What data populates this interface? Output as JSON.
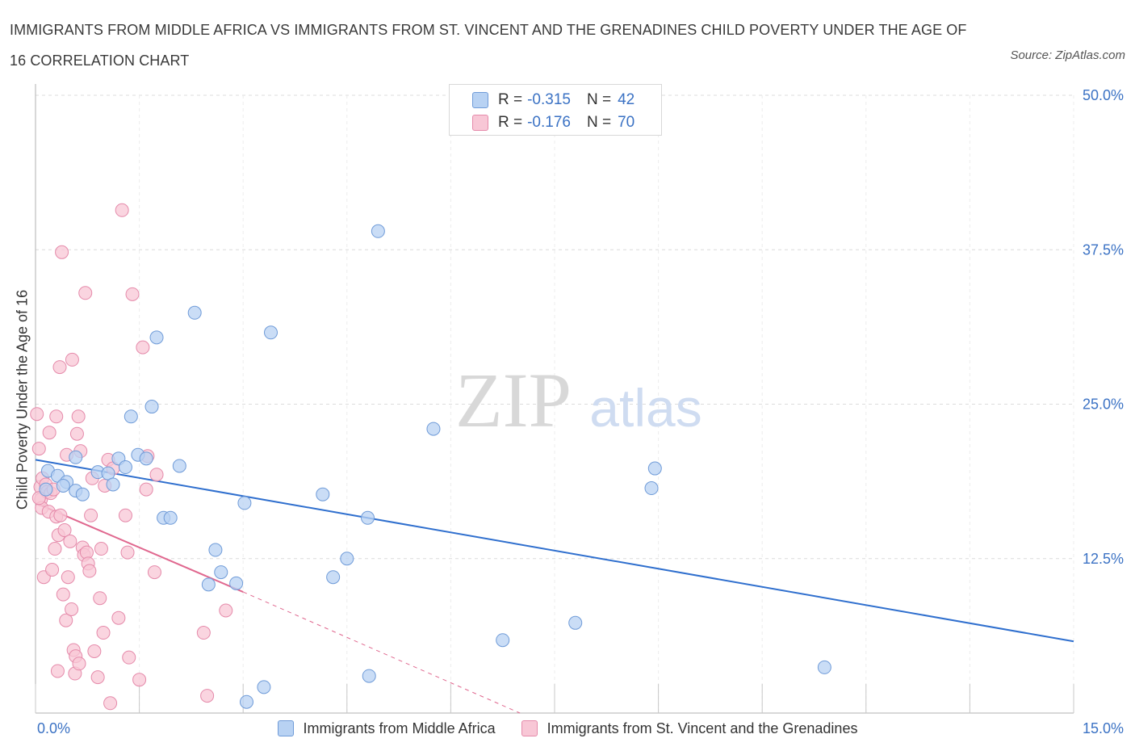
{
  "header": {
    "title": "IMMIGRANTS FROM MIDDLE AFRICA VS IMMIGRANTS FROM ST. VINCENT AND THE GRENADINES CHILD POVERTY UNDER THE AGE OF 16 CORRELATION CHART",
    "source": "Source: ZipAtlas.com"
  },
  "legend": {
    "r_label": "R =",
    "n_label": "N =",
    "series": [
      {
        "r": "-0.315",
        "n": "42"
      },
      {
        "r": "-0.176",
        "n": "70"
      }
    ]
  },
  "watermark": {
    "zip": "ZIP",
    "atlas": "atlas"
  },
  "colors": {
    "blue_fill": "#b8d2f3",
    "blue_stroke": "#6f9bd8",
    "blue_line": "#2f6fce",
    "pink_fill": "#f8c7d6",
    "pink_stroke": "#e58aaa",
    "pink_line": "#e0688f",
    "tick_label": "#3b72c4",
    "grid": "#dcdcdc"
  },
  "chart_data": {
    "type": "scatter",
    "title": "IMMIGRANTS FROM MIDDLE AFRICA VS IMMIGRANTS FROM ST. VINCENT AND THE GRENADINES CHILD POVERTY UNDER THE AGE OF 16 CORRELATION CHART",
    "xlabel": "",
    "ylabel": "Child Poverty Under the Age of 16",
    "xlim": [
      0,
      15
    ],
    "ylim": [
      0,
      50
    ],
    "x_tick_labels": [
      "0.0%",
      "15.0%"
    ],
    "y_ticks": [
      12.5,
      25,
      37.5,
      50
    ],
    "y_tick_labels": [
      "12.5%",
      "25.0%",
      "37.5%",
      "50.0%"
    ],
    "grid": true,
    "legend_position": "top-center",
    "series": [
      {
        "name": "Immigrants from Middle Africa",
        "points": [
          [
            0.18,
            19.6
          ],
          [
            0.32,
            19.2
          ],
          [
            0.45,
            18.7
          ],
          [
            0.58,
            18.0
          ],
          [
            0.68,
            17.7
          ],
          [
            0.58,
            20.7
          ],
          [
            0.9,
            19.5
          ],
          [
            1.05,
            19.4
          ],
          [
            1.12,
            18.5
          ],
          [
            1.2,
            20.6
          ],
          [
            1.3,
            19.9
          ],
          [
            1.38,
            24.0
          ],
          [
            1.48,
            20.9
          ],
          [
            1.6,
            20.6
          ],
          [
            1.68,
            24.8
          ],
          [
            1.75,
            30.4
          ],
          [
            1.85,
            15.8
          ],
          [
            1.95,
            15.8
          ],
          [
            2.08,
            20.0
          ],
          [
            2.3,
            32.4
          ],
          [
            2.5,
            10.4
          ],
          [
            2.6,
            13.2
          ],
          [
            2.68,
            11.4
          ],
          [
            2.9,
            10.5
          ],
          [
            3.02,
            17.0
          ],
          [
            3.05,
            0.9
          ],
          [
            3.3,
            2.1
          ],
          [
            3.4,
            30.8
          ],
          [
            4.15,
            17.7
          ],
          [
            4.3,
            11.0
          ],
          [
            4.5,
            12.5
          ],
          [
            4.8,
            15.8
          ],
          [
            4.82,
            3.0
          ],
          [
            4.95,
            39.0
          ],
          [
            5.75,
            23.0
          ],
          [
            6.75,
            5.9
          ],
          [
            7.8,
            7.3
          ],
          [
            8.9,
            18.2
          ],
          [
            8.95,
            19.8
          ],
          [
            11.4,
            3.7
          ],
          [
            0.15,
            18.1
          ],
          [
            0.4,
            18.4
          ]
        ]
      },
      {
        "name": "Immigrants from St. Vincent and the Grenadines",
        "points": [
          [
            0.02,
            24.2
          ],
          [
            0.05,
            21.4
          ],
          [
            0.07,
            18.3
          ],
          [
            0.08,
            17.3
          ],
          [
            0.09,
            16.6
          ],
          [
            0.1,
            19.0
          ],
          [
            0.12,
            11.0
          ],
          [
            0.15,
            18.5
          ],
          [
            0.17,
            17.9
          ],
          [
            0.19,
            16.3
          ],
          [
            0.2,
            22.7
          ],
          [
            0.22,
            17.8
          ],
          [
            0.24,
            11.6
          ],
          [
            0.26,
            18.1
          ],
          [
            0.28,
            13.3
          ],
          [
            0.3,
            24.0
          ],
          [
            0.3,
            15.9
          ],
          [
            0.32,
            3.4
          ],
          [
            0.33,
            14.4
          ],
          [
            0.35,
            28.0
          ],
          [
            0.36,
            16.0
          ],
          [
            0.38,
            37.3
          ],
          [
            0.4,
            9.6
          ],
          [
            0.42,
            14.8
          ],
          [
            0.44,
            7.5
          ],
          [
            0.45,
            20.9
          ],
          [
            0.47,
            11.0
          ],
          [
            0.5,
            13.9
          ],
          [
            0.52,
            8.4
          ],
          [
            0.53,
            28.6
          ],
          [
            0.55,
            5.1
          ],
          [
            0.57,
            3.2
          ],
          [
            0.58,
            4.6
          ],
          [
            0.6,
            22.6
          ],
          [
            0.62,
            24.0
          ],
          [
            0.63,
            4.0
          ],
          [
            0.65,
            21.2
          ],
          [
            0.68,
            13.4
          ],
          [
            0.7,
            12.8
          ],
          [
            0.72,
            34.0
          ],
          [
            0.74,
            13.0
          ],
          [
            0.76,
            12.1
          ],
          [
            0.78,
            11.5
          ],
          [
            0.8,
            16.0
          ],
          [
            0.82,
            19.0
          ],
          [
            0.85,
            5.0
          ],
          [
            0.9,
            2.9
          ],
          [
            0.93,
            9.3
          ],
          [
            0.95,
            13.3
          ],
          [
            0.98,
            6.5
          ],
          [
            1.0,
            18.4
          ],
          [
            1.05,
            20.5
          ],
          [
            1.08,
            0.8
          ],
          [
            1.12,
            19.8
          ],
          [
            1.2,
            7.7
          ],
          [
            1.25,
            40.7
          ],
          [
            1.3,
            16.0
          ],
          [
            1.33,
            13.0
          ],
          [
            1.35,
            4.5
          ],
          [
            1.4,
            33.9
          ],
          [
            1.5,
            2.7
          ],
          [
            1.55,
            29.6
          ],
          [
            1.6,
            18.1
          ],
          [
            1.62,
            20.8
          ],
          [
            1.72,
            11.4
          ],
          [
            1.75,
            19.3
          ],
          [
            2.43,
            6.5
          ],
          [
            2.48,
            1.4
          ],
          [
            2.75,
            8.3
          ],
          [
            0.05,
            17.4
          ]
        ]
      }
    ],
    "trend_lines": [
      {
        "series": "Immigrants from Middle Africa",
        "x": [
          0,
          15
        ],
        "y": [
          20.5,
          5.8
        ],
        "style": "solid"
      },
      {
        "series": "Immigrants from St. Vincent and the Grenadines",
        "x": [
          0,
          3.0
        ],
        "y": [
          17.0,
          9.8
        ],
        "style": "solid"
      },
      {
        "series": "Immigrants from St. Vincent and the Grenadines",
        "x": [
          3.0,
          7.0
        ],
        "y": [
          9.8,
          0
        ],
        "style": "dashed"
      }
    ]
  }
}
